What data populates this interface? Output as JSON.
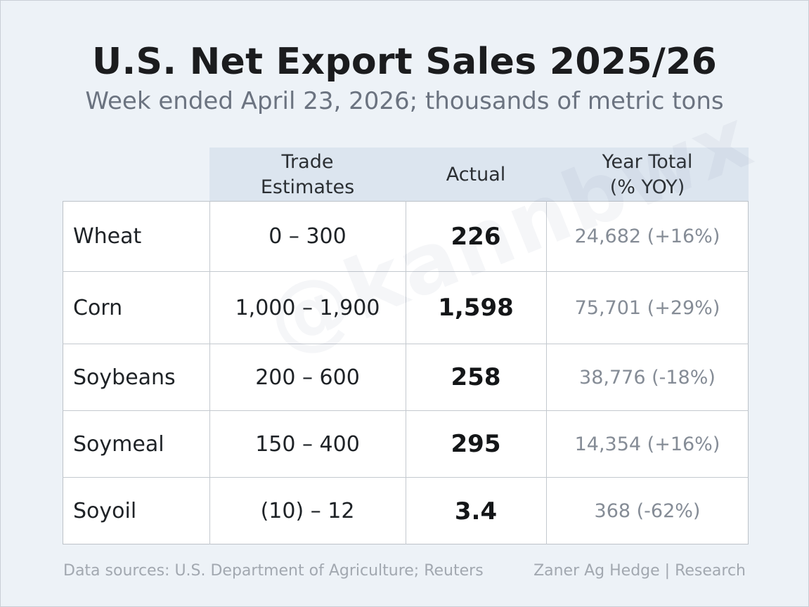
{
  "title": "U.S. Net Export Sales 2025/26",
  "subtitle": "Week ended April 23, 2026; thousands of metric tons",
  "columns": {
    "estimates": "Trade\nEstimates",
    "actual": "Actual",
    "year_total": "Year Total\n(% YOY)"
  },
  "rows": [
    {
      "commodity": "Wheat",
      "estimates": "0 – 300",
      "actual": "226",
      "year_total": "24,682 (+16%)"
    },
    {
      "commodity": "Corn",
      "estimates": "1,000 – 1,900",
      "actual": "1,598",
      "year_total": "75,701 (+29%)"
    },
    {
      "commodity": "Soybeans",
      "estimates": "200 – 600",
      "actual": "258",
      "year_total": "38,776 (-18%)"
    },
    {
      "commodity": "Soymeal",
      "estimates": "150 – 400",
      "actual": "295",
      "year_total": "14,354 (+16%)"
    },
    {
      "commodity": "Soyoil",
      "estimates": "(10) – 12",
      "actual": "3.4",
      "year_total": "368 (-62%)"
    }
  ],
  "watermark": "@kannbwx",
  "footer": {
    "sources": "Data sources: U.S. Department of Agriculture; Reuters",
    "credit": "Zaner Ag Hedge | Research"
  },
  "colors": {
    "background": "#edf2f7",
    "header_band": "#dce5ef",
    "table_bg": "#ffffff",
    "muted_text": "#858c96"
  }
}
